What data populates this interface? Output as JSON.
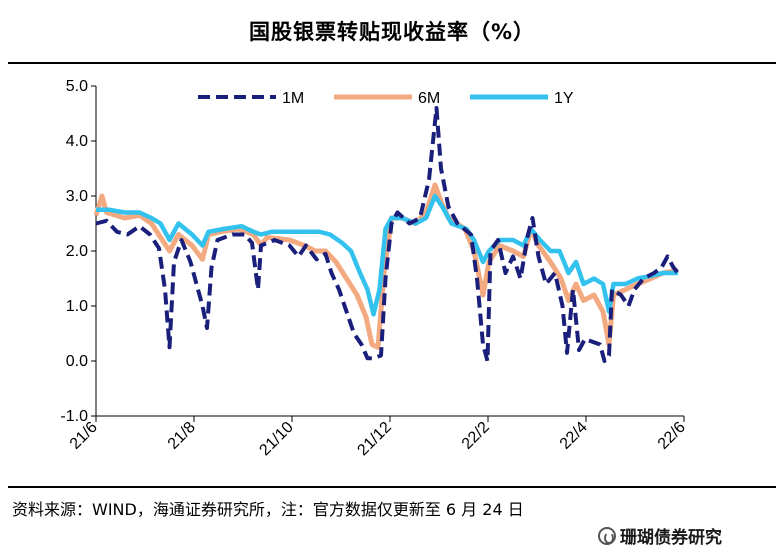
{
  "title": "国股银票转贴现收益率（%）",
  "source": "资料来源：WIND，海通证券研究所，注：官方数据仅更新至 6 月 24 日",
  "watermark": "珊瑚债券研究",
  "chart_data": {
    "type": "line",
    "title": "国股银票转贴现收益率（%）",
    "xlabel": "",
    "ylabel": "",
    "ylim": [
      -1.0,
      5.0
    ],
    "yticks": [
      "5.0",
      "4.0",
      "3.0",
      "2.0",
      "1.0",
      "0.0",
      "-1.0"
    ],
    "x_range": [
      "2021-06-01",
      "2022-06-28"
    ],
    "xticks": [
      "21/6",
      "21/8",
      "21/10",
      "21/12",
      "22/2",
      "22/4",
      "22/6"
    ],
    "grid": false,
    "legend_position": "top",
    "series": [
      {
        "name": "1M",
        "color": "#1a1f7c",
        "style": "dashed",
        "points": [
          [
            "2021-06-01",
            2.5
          ],
          [
            "2021-06-08",
            2.55
          ],
          [
            "2021-06-15",
            2.35
          ],
          [
            "2021-06-22",
            2.3
          ],
          [
            "2021-06-30",
            2.45
          ],
          [
            "2021-07-07",
            2.3
          ],
          [
            "2021-07-13",
            2.05
          ],
          [
            "2021-07-17",
            1.3
          ],
          [
            "2021-07-20",
            0.25
          ],
          [
            "2021-07-23",
            1.8
          ],
          [
            "2021-07-28",
            2.2
          ],
          [
            "2021-08-03",
            1.8
          ],
          [
            "2021-08-07",
            1.4
          ],
          [
            "2021-08-11",
            1.0
          ],
          [
            "2021-08-14",
            0.6
          ],
          [
            "2021-08-17",
            1.7
          ],
          [
            "2021-08-21",
            2.2
          ],
          [
            "2021-08-31",
            2.3
          ],
          [
            "2021-09-08",
            2.3
          ],
          [
            "2021-09-13",
            2.15
          ],
          [
            "2021-09-17",
            1.3
          ],
          [
            "2021-09-19",
            2.1
          ],
          [
            "2021-09-28",
            2.2
          ],
          [
            "2021-10-08",
            2.1
          ],
          [
            "2021-10-14",
            1.9
          ],
          [
            "2021-10-19",
            2.1
          ],
          [
            "2021-10-26",
            1.85
          ],
          [
            "2021-11-01",
            1.95
          ],
          [
            "2021-11-05",
            1.6
          ],
          [
            "2021-11-10",
            1.3
          ],
          [
            "2021-11-15",
            0.9
          ],
          [
            "2021-11-20",
            0.5
          ],
          [
            "2021-11-25",
            0.3
          ],
          [
            "2021-11-29",
            0.05
          ],
          [
            "2021-12-03",
            0.05
          ],
          [
            "2021-12-08",
            0.1
          ],
          [
            "2021-12-11",
            1.5
          ],
          [
            "2021-12-15",
            2.5
          ],
          [
            "2021-12-19",
            2.7
          ],
          [
            "2021-12-27",
            2.5
          ],
          [
            "2022-01-03",
            2.6
          ],
          [
            "2022-01-09",
            3.3
          ],
          [
            "2022-01-14",
            4.6
          ],
          [
            "2022-01-17",
            3.5
          ],
          [
            "2022-01-22",
            2.8
          ],
          [
            "2022-01-28",
            2.5
          ],
          [
            "2022-02-06",
            2.3
          ],
          [
            "2022-02-10",
            1.5
          ],
          [
            "2022-02-14",
            0.3
          ],
          [
            "2022-02-17",
            0.0
          ],
          [
            "2022-02-19",
            2.0
          ],
          [
            "2022-02-24",
            2.2
          ],
          [
            "2022-03-01",
            1.6
          ],
          [
            "2022-03-06",
            1.9
          ],
          [
            "2022-03-11",
            1.5
          ],
          [
            "2022-03-16",
            2.3
          ],
          [
            "2022-03-19",
            2.6
          ],
          [
            "2022-03-23",
            1.9
          ],
          [
            "2022-03-28",
            1.4
          ],
          [
            "2022-04-03",
            1.6
          ],
          [
            "2022-04-08",
            1.0
          ],
          [
            "2022-04-11",
            0.15
          ],
          [
            "2022-04-15",
            1.3
          ],
          [
            "2022-04-19",
            0.2
          ],
          [
            "2022-04-23",
            0.4
          ],
          [
            "2022-04-28",
            0.35
          ],
          [
            "2022-05-03",
            0.3
          ],
          [
            "2022-05-06",
            0.0
          ],
          [
            "2022-05-09",
            0.1
          ],
          [
            "2022-05-11",
            1.3
          ],
          [
            "2022-05-17",
            1.2
          ],
          [
            "2022-05-22",
            1.0
          ],
          [
            "2022-05-26",
            1.3
          ],
          [
            "2022-06-01",
            1.5
          ],
          [
            "2022-06-08",
            1.6
          ],
          [
            "2022-06-13",
            1.7
          ],
          [
            "2022-06-17",
            1.9
          ],
          [
            "2022-06-21",
            1.7
          ],
          [
            "2022-06-24",
            1.6
          ]
        ]
      },
      {
        "name": "6M",
        "color": "#f4aa80",
        "style": "solid",
        "points": [
          [
            "2021-06-01",
            2.65
          ],
          [
            "2021-06-05",
            3.0
          ],
          [
            "2021-06-08",
            2.7
          ],
          [
            "2021-06-20",
            2.6
          ],
          [
            "2021-06-30",
            2.65
          ],
          [
            "2021-07-08",
            2.5
          ],
          [
            "2021-07-14",
            2.25
          ],
          [
            "2021-07-20",
            2.0
          ],
          [
            "2021-07-26",
            2.3
          ],
          [
            "2021-08-04",
            2.1
          ],
          [
            "2021-08-11",
            1.85
          ],
          [
            "2021-08-15",
            2.3
          ],
          [
            "2021-08-23",
            2.35
          ],
          [
            "2021-09-04",
            2.4
          ],
          [
            "2021-09-14",
            2.3
          ],
          [
            "2021-09-19",
            2.1
          ],
          [
            "2021-09-23",
            2.25
          ],
          [
            "2021-10-08",
            2.2
          ],
          [
            "2021-10-18",
            2.1
          ],
          [
            "2021-10-25",
            2.0
          ],
          [
            "2021-11-01",
            2.0
          ],
          [
            "2021-11-08",
            1.8
          ],
          [
            "2021-11-15",
            1.5
          ],
          [
            "2021-11-22",
            1.2
          ],
          [
            "2021-11-28",
            0.8
          ],
          [
            "2021-12-02",
            0.3
          ],
          [
            "2021-12-06",
            0.25
          ],
          [
            "2021-12-10",
            1.6
          ],
          [
            "2021-12-15",
            2.6
          ],
          [
            "2021-12-22",
            2.6
          ],
          [
            "2021-12-31",
            2.5
          ],
          [
            "2022-01-07",
            2.7
          ],
          [
            "2022-01-13",
            3.2
          ],
          [
            "2022-01-17",
            2.9
          ],
          [
            "2022-01-22",
            2.6
          ],
          [
            "2022-02-02",
            2.4
          ],
          [
            "2022-02-08",
            2.0
          ],
          [
            "2022-02-14",
            1.2
          ],
          [
            "2022-02-18",
            1.8
          ],
          [
            "2022-02-25",
            2.1
          ],
          [
            "2022-03-06",
            2.0
          ],
          [
            "2022-03-13",
            1.9
          ],
          [
            "2022-03-18",
            2.4
          ],
          [
            "2022-03-23",
            2.1
          ],
          [
            "2022-03-31",
            1.8
          ],
          [
            "2022-04-07",
            1.5
          ],
          [
            "2022-04-12",
            1.1
          ],
          [
            "2022-04-17",
            1.4
          ],
          [
            "2022-04-22",
            1.1
          ],
          [
            "2022-04-29",
            1.2
          ],
          [
            "2022-05-05",
            0.9
          ],
          [
            "2022-05-09",
            0.3
          ],
          [
            "2022-05-12",
            1.2
          ],
          [
            "2022-05-20",
            1.3
          ],
          [
            "2022-05-28",
            1.4
          ],
          [
            "2022-06-06",
            1.5
          ],
          [
            "2022-06-14",
            1.6
          ],
          [
            "2022-06-24",
            1.65
          ]
        ]
      },
      {
        "name": "1Y",
        "color": "#33c2ee",
        "style": "solid",
        "points": [
          [
            "2021-06-01",
            2.75
          ],
          [
            "2021-06-10",
            2.75
          ],
          [
            "2021-06-20",
            2.7
          ],
          [
            "2021-06-30",
            2.7
          ],
          [
            "2021-07-08",
            2.6
          ],
          [
            "2021-07-14",
            2.5
          ],
          [
            "2021-07-20",
            2.2
          ],
          [
            "2021-07-26",
            2.5
          ],
          [
            "2021-08-04",
            2.3
          ],
          [
            "2021-08-11",
            2.1
          ],
          [
            "2021-08-15",
            2.35
          ],
          [
            "2021-08-25",
            2.4
          ],
          [
            "2021-09-06",
            2.45
          ],
          [
            "2021-09-14",
            2.35
          ],
          [
            "2021-09-19",
            2.3
          ],
          [
            "2021-09-26",
            2.35
          ],
          [
            "2021-10-08",
            2.35
          ],
          [
            "2021-10-18",
            2.35
          ],
          [
            "2021-10-28",
            2.35
          ],
          [
            "2021-11-04",
            2.3
          ],
          [
            "2021-11-12",
            2.15
          ],
          [
            "2021-11-18",
            2.0
          ],
          [
            "2021-11-24",
            1.6
          ],
          [
            "2021-11-29",
            1.3
          ],
          [
            "2021-12-03",
            0.85
          ],
          [
            "2021-12-07",
            1.3
          ],
          [
            "2021-12-11",
            2.4
          ],
          [
            "2021-12-15",
            2.6
          ],
          [
            "2021-12-22",
            2.6
          ],
          [
            "2021-12-31",
            2.5
          ],
          [
            "2022-01-07",
            2.6
          ],
          [
            "2022-01-13",
            3.0
          ],
          [
            "2022-01-18",
            2.8
          ],
          [
            "2022-01-24",
            2.5
          ],
          [
            "2022-02-03",
            2.4
          ],
          [
            "2022-02-08",
            2.2
          ],
          [
            "2022-02-14",
            1.8
          ],
          [
            "2022-02-18",
            2.0
          ],
          [
            "2022-02-25",
            2.2
          ],
          [
            "2022-03-06",
            2.2
          ],
          [
            "2022-03-13",
            2.1
          ],
          [
            "2022-03-18",
            2.4
          ],
          [
            "2022-03-24",
            2.2
          ],
          [
            "2022-03-31",
            2.0
          ],
          [
            "2022-04-06",
            2.0
          ],
          [
            "2022-04-12",
            1.6
          ],
          [
            "2022-04-17",
            1.8
          ],
          [
            "2022-04-22",
            1.4
          ],
          [
            "2022-04-29",
            1.5
          ],
          [
            "2022-05-05",
            1.4
          ],
          [
            "2022-05-09",
            0.9
          ],
          [
            "2022-05-12",
            1.4
          ],
          [
            "2022-05-20",
            1.4
          ],
          [
            "2022-05-28",
            1.5
          ],
          [
            "2022-06-06",
            1.55
          ],
          [
            "2022-06-14",
            1.6
          ],
          [
            "2022-06-24",
            1.6
          ]
        ]
      }
    ]
  }
}
